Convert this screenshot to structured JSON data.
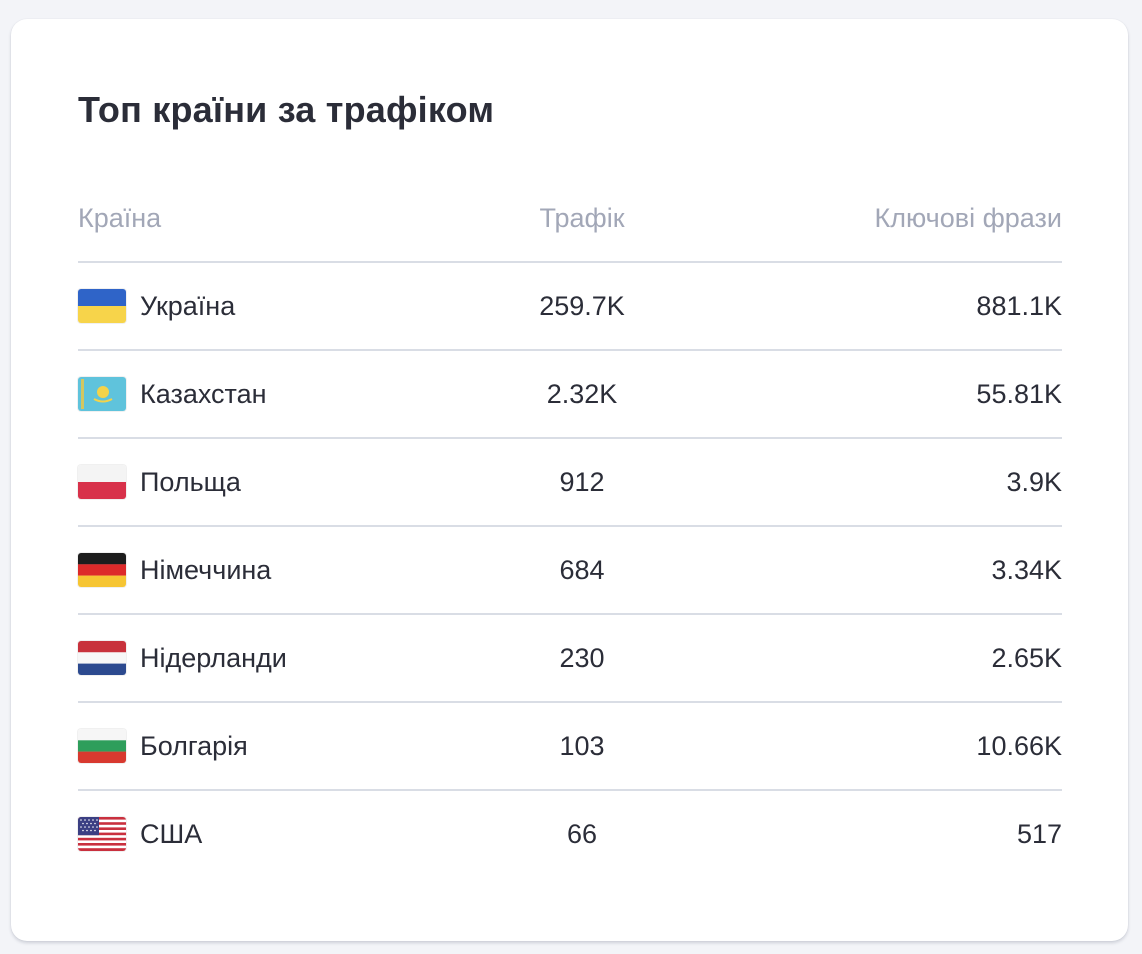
{
  "card": {
    "title": "Топ країни за трафіком"
  },
  "table": {
    "headers": {
      "country": "Країна",
      "traffic": "Трафік",
      "keywords": "Ключові фрази"
    },
    "rows": [
      {
        "country": "Україна",
        "flag_icon": "ukraine-flag-icon",
        "traffic": "259.7K",
        "keywords": "881.1K"
      },
      {
        "country": "Казахстан",
        "flag_icon": "kazakhstan-flag-icon",
        "traffic": "2.32K",
        "keywords": "55.81K"
      },
      {
        "country": "Польща",
        "flag_icon": "poland-flag-icon",
        "traffic": "912",
        "keywords": "3.9K"
      },
      {
        "country": "Німеччина",
        "flag_icon": "germany-flag-icon",
        "traffic": "684",
        "keywords": "3.34K"
      },
      {
        "country": "Нідерланди",
        "flag_icon": "netherlands-flag-icon",
        "traffic": "230",
        "keywords": "2.65K"
      },
      {
        "country": "Болгарія",
        "flag_icon": "bulgaria-flag-icon",
        "traffic": "103",
        "keywords": "10.66K"
      },
      {
        "country": "США",
        "flag_icon": "usa-flag-icon",
        "traffic": "66",
        "keywords": "517"
      }
    ]
  },
  "colors": {
    "title_text": "#2b2d38",
    "header_text": "#a2a7b7",
    "divider": "#d9dde5",
    "page_background": "#f3f4f8"
  }
}
